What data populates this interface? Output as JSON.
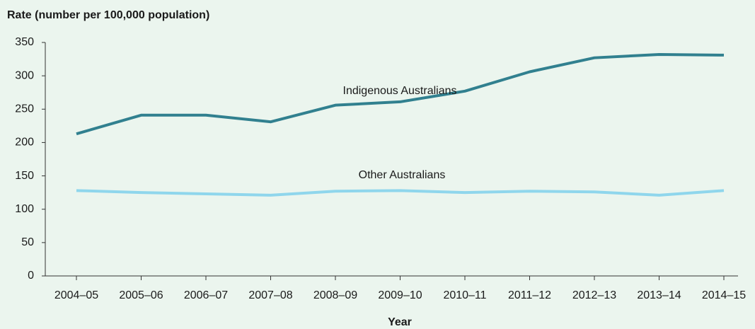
{
  "chart_data": {
    "type": "line",
    "y_axis_label": "Rate (number per 100,000 population)",
    "x_axis_label": "Year",
    "categories": [
      "2004–05",
      "2005–06",
      "2006–07",
      "2007–08",
      "2008–09",
      "2009–10",
      "2010–11",
      "2011–12",
      "2012–13",
      "2013–14",
      "2014–15"
    ],
    "series": [
      {
        "name": "Indigenous Australians",
        "color": "#31808f",
        "values": [
          213,
          241,
          241,
          231,
          256,
          261,
          277,
          306,
          327,
          332,
          331
        ]
      },
      {
        "name": "Other Australians",
        "color": "#8fd6ec",
        "values": [
          128,
          125,
          123,
          121,
          127,
          128,
          125,
          127,
          126,
          121,
          128
        ]
      }
    ],
    "ylim": [
      0,
      350
    ],
    "yticks": [
      0,
      50,
      100,
      150,
      200,
      250,
      300,
      350
    ],
    "grid": false
  }
}
